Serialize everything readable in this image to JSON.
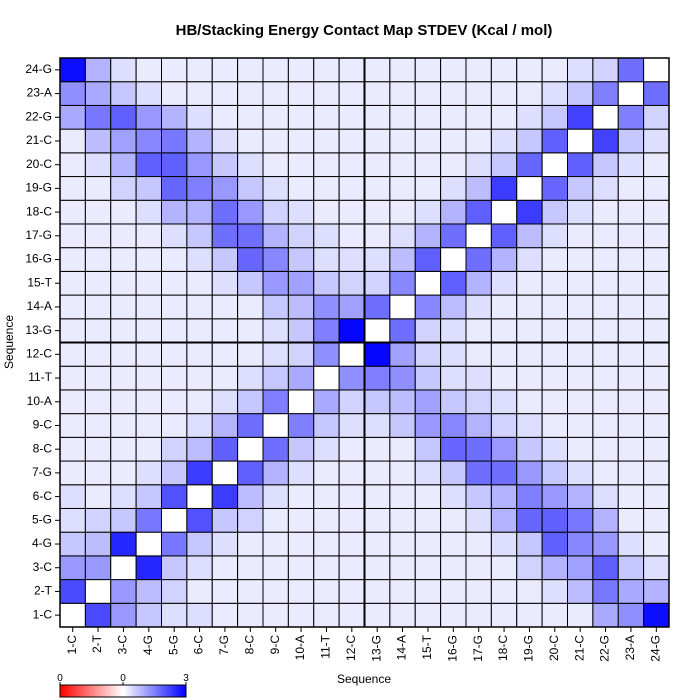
{
  "chart_data": {
    "type": "heatmap",
    "title": "HB/Stacking Energy Contact Map STDEV (Kcal / mol)",
    "xlabel": "Sequence",
    "ylabel": "Sequence",
    "labels": [
      "1-C",
      "2-T",
      "3-C",
      "4-G",
      "5-G",
      "6-C",
      "7-G",
      "8-C",
      "9-C",
      "10-A",
      "11-T",
      "12-C",
      "13-G",
      "14-A",
      "15-T",
      "16-G",
      "17-G",
      "18-C",
      "19-G",
      "20-C",
      "21-C",
      "22-G",
      "23-A",
      "24-G"
    ],
    "value_range": [
      0,
      3
    ],
    "colorbar_ticks": [
      "0",
      "0",
      "3"
    ],
    "colors": {
      "low": "#ff0000",
      "mid": "#ffffff",
      "high": "#0000ff"
    },
    "matrix": [
      [
        0.0,
        1.9,
        0.9,
        0.4,
        0.2,
        0.2,
        0.1,
        0.1,
        0.1,
        0.1,
        0.1,
        0.1,
        0.1,
        0.1,
        0.1,
        0.1,
        0.1,
        0.1,
        0.1,
        0.1,
        0.1,
        0.7,
        1.0,
        2.8
      ],
      [
        1.9,
        0.0,
        0.9,
        0.5,
        0.3,
        0.1,
        0.1,
        0.1,
        0.1,
        0.1,
        0.1,
        0.1,
        0.1,
        0.1,
        0.1,
        0.1,
        0.1,
        0.1,
        0.1,
        0.2,
        0.5,
        1.3,
        0.7,
        0.6
      ],
      [
        0.9,
        0.9,
        0.0,
        2.4,
        0.4,
        0.2,
        0.1,
        0.1,
        0.1,
        0.1,
        0.1,
        0.1,
        0.1,
        0.1,
        0.1,
        0.1,
        0.1,
        0.1,
        0.3,
        0.6,
        0.8,
        1.6,
        0.4,
        0.2
      ],
      [
        0.4,
        0.5,
        2.4,
        0.0,
        1.3,
        0.4,
        0.2,
        0.1,
        0.1,
        0.1,
        0.1,
        0.1,
        0.1,
        0.1,
        0.1,
        0.1,
        0.1,
        0.2,
        0.4,
        1.6,
        1.1,
        0.9,
        0.2,
        0.1
      ],
      [
        0.2,
        0.3,
        0.4,
        1.3,
        0.0,
        1.8,
        0.4,
        0.3,
        0.1,
        0.1,
        0.1,
        0.1,
        0.1,
        0.1,
        0.1,
        0.1,
        0.2,
        0.6,
        1.5,
        1.6,
        1.3,
        0.6,
        0.1,
        0.1
      ],
      [
        0.2,
        0.1,
        0.2,
        0.4,
        1.8,
        0.0,
        2.1,
        0.5,
        0.2,
        0.1,
        0.1,
        0.1,
        0.1,
        0.1,
        0.1,
        0.2,
        0.4,
        0.6,
        1.2,
        0.9,
        0.6,
        0.2,
        0.1,
        0.1
      ],
      [
        0.1,
        0.1,
        0.1,
        0.2,
        0.4,
        2.1,
        0.0,
        1.6,
        0.6,
        0.2,
        0.1,
        0.1,
        0.1,
        0.1,
        0.2,
        0.4,
        1.4,
        1.4,
        0.9,
        0.4,
        0.2,
        0.1,
        0.1,
        0.1
      ],
      [
        0.1,
        0.1,
        0.1,
        0.1,
        0.3,
        0.5,
        1.6,
        0.0,
        1.4,
        0.4,
        0.2,
        0.1,
        0.1,
        0.1,
        0.4,
        1.5,
        1.4,
        0.9,
        0.4,
        0.2,
        0.1,
        0.1,
        0.1,
        0.1
      ],
      [
        0.1,
        0.1,
        0.1,
        0.1,
        0.1,
        0.2,
        0.6,
        1.4,
        0.0,
        1.2,
        0.4,
        0.2,
        0.2,
        0.4,
        0.9,
        1.1,
        0.6,
        0.3,
        0.2,
        0.1,
        0.1,
        0.1,
        0.1,
        0.1
      ],
      [
        0.1,
        0.1,
        0.1,
        0.1,
        0.1,
        0.1,
        0.2,
        0.4,
        1.2,
        0.0,
        0.7,
        0.3,
        0.4,
        0.5,
        0.8,
        0.4,
        0.3,
        0.2,
        0.1,
        0.1,
        0.1,
        0.1,
        0.1,
        0.1
      ],
      [
        0.1,
        0.1,
        0.1,
        0.1,
        0.1,
        0.1,
        0.1,
        0.2,
        0.4,
        0.7,
        0.0,
        1.0,
        1.2,
        1.0,
        0.4,
        0.2,
        0.2,
        0.1,
        0.1,
        0.1,
        0.1,
        0.1,
        0.1,
        0.1
      ],
      [
        0.1,
        0.1,
        0.1,
        0.1,
        0.1,
        0.1,
        0.1,
        0.1,
        0.2,
        0.3,
        1.0,
        0.0,
        2.9,
        0.8,
        0.3,
        0.2,
        0.1,
        0.1,
        0.1,
        0.1,
        0.1,
        0.1,
        0.1,
        0.1
      ],
      [
        0.1,
        0.1,
        0.1,
        0.1,
        0.1,
        0.1,
        0.1,
        0.1,
        0.2,
        0.4,
        1.2,
        2.9,
        0.0,
        1.4,
        0.3,
        0.2,
        0.1,
        0.1,
        0.1,
        0.1,
        0.1,
        0.1,
        0.1,
        0.1
      ],
      [
        0.1,
        0.1,
        0.1,
        0.1,
        0.1,
        0.1,
        0.1,
        0.1,
        0.4,
        0.5,
        1.0,
        0.8,
        1.4,
        0.0,
        1.1,
        0.5,
        0.2,
        0.1,
        0.1,
        0.1,
        0.1,
        0.1,
        0.1,
        0.1
      ],
      [
        0.1,
        0.1,
        0.1,
        0.1,
        0.1,
        0.1,
        0.2,
        0.4,
        0.9,
        0.8,
        0.4,
        0.3,
        0.3,
        1.1,
        0.0,
        1.6,
        0.6,
        0.2,
        0.1,
        0.1,
        0.1,
        0.1,
        0.1,
        0.1
      ],
      [
        0.1,
        0.1,
        0.1,
        0.1,
        0.1,
        0.2,
        0.4,
        1.5,
        1.1,
        0.4,
        0.2,
        0.2,
        0.2,
        0.5,
        1.6,
        0.0,
        1.4,
        0.6,
        0.2,
        0.1,
        0.1,
        0.1,
        0.1,
        0.1
      ],
      [
        0.1,
        0.1,
        0.1,
        0.1,
        0.2,
        0.4,
        1.4,
        1.4,
        0.6,
        0.3,
        0.2,
        0.1,
        0.1,
        0.2,
        0.6,
        1.4,
        0.0,
        1.6,
        0.5,
        0.2,
        0.1,
        0.1,
        0.1,
        0.1
      ],
      [
        0.1,
        0.1,
        0.1,
        0.2,
        0.6,
        0.6,
        1.4,
        0.9,
        0.3,
        0.2,
        0.1,
        0.1,
        0.1,
        0.1,
        0.2,
        0.6,
        1.6,
        0.0,
        2.1,
        0.4,
        0.2,
        0.1,
        0.1,
        0.1
      ],
      [
        0.1,
        0.1,
        0.3,
        0.4,
        1.5,
        1.2,
        0.9,
        0.4,
        0.2,
        0.1,
        0.1,
        0.1,
        0.1,
        0.1,
        0.1,
        0.2,
        0.5,
        2.1,
        0.0,
        1.5,
        0.4,
        0.2,
        0.1,
        0.1
      ],
      [
        0.1,
        0.2,
        0.6,
        1.6,
        1.6,
        0.9,
        0.4,
        0.2,
        0.1,
        0.1,
        0.1,
        0.1,
        0.1,
        0.1,
        0.1,
        0.1,
        0.2,
        0.4,
        1.5,
        0.0,
        1.6,
        0.4,
        0.2,
        0.1
      ],
      [
        0.1,
        0.5,
        0.8,
        1.1,
        1.3,
        0.6,
        0.2,
        0.1,
        0.1,
        0.1,
        0.1,
        0.1,
        0.1,
        0.1,
        0.1,
        0.1,
        0.1,
        0.2,
        0.4,
        1.6,
        0.0,
        2.0,
        0.4,
        0.2
      ],
      [
        0.7,
        1.3,
        1.6,
        0.9,
        0.6,
        0.2,
        0.1,
        0.1,
        0.1,
        0.1,
        0.1,
        0.1,
        0.1,
        0.1,
        0.1,
        0.1,
        0.1,
        0.1,
        0.2,
        0.4,
        2.0,
        0.0,
        1.2,
        0.3
      ],
      [
        1.0,
        0.7,
        0.4,
        0.2,
        0.1,
        0.1,
        0.1,
        0.1,
        0.1,
        0.1,
        0.1,
        0.1,
        0.1,
        0.1,
        0.1,
        0.1,
        0.1,
        0.1,
        0.1,
        0.2,
        0.4,
        1.2,
        0.0,
        1.4
      ],
      [
        2.8,
        0.6,
        0.2,
        0.1,
        0.1,
        0.1,
        0.1,
        0.1,
        0.1,
        0.1,
        0.1,
        0.1,
        0.1,
        0.1,
        0.1,
        0.1,
        0.1,
        0.1,
        0.1,
        0.1,
        0.2,
        0.3,
        1.4,
        0.0
      ]
    ]
  }
}
